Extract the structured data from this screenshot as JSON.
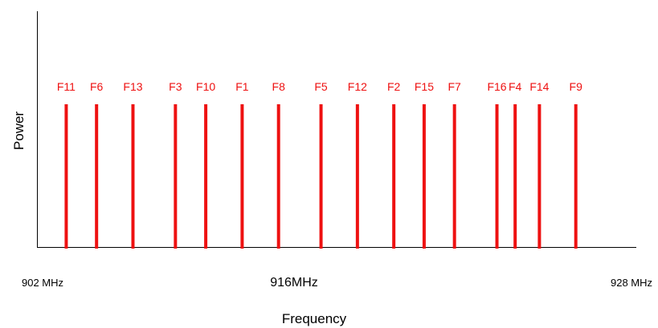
{
  "diagram": {
    "y_label": "Power",
    "x_label": "Frequency",
    "tick_left": "902 MHz",
    "tick_center": "916MHz",
    "tick_right": "928 MHz",
    "line_color": "#ee1111",
    "axis_color": "#000000"
  },
  "chart_data": {
    "type": "bar",
    "title": "",
    "xlabel": "Frequency",
    "ylabel": "Power",
    "channels": [
      {
        "name": "F11",
        "mhz": 902.5
      },
      {
        "name": "F6",
        "mhz": 903.5
      },
      {
        "name": "F13",
        "mhz": 904.7
      },
      {
        "name": "F3",
        "mhz": 906.1
      },
      {
        "name": "F10",
        "mhz": 907.1
      },
      {
        "name": "F1",
        "mhz": 908.3
      },
      {
        "name": "F8",
        "mhz": 909.5
      },
      {
        "name": "F5",
        "mhz": 910.9
      },
      {
        "name": "F12",
        "mhz": 912.1
      },
      {
        "name": "F2",
        "mhz": 913.3
      },
      {
        "name": "F15",
        "mhz": 914.3
      },
      {
        "name": "F7",
        "mhz": 915.3
      },
      {
        "name": "F16",
        "mhz": 916.7
      },
      {
        "name": "F4",
        "mhz": 917.3
      },
      {
        "name": "F14",
        "mhz": 918.1
      },
      {
        "name": "F9",
        "mhz": 919.3
      }
    ],
    "xlim": [
      901.8,
      920.5
    ],
    "power": 1
  }
}
